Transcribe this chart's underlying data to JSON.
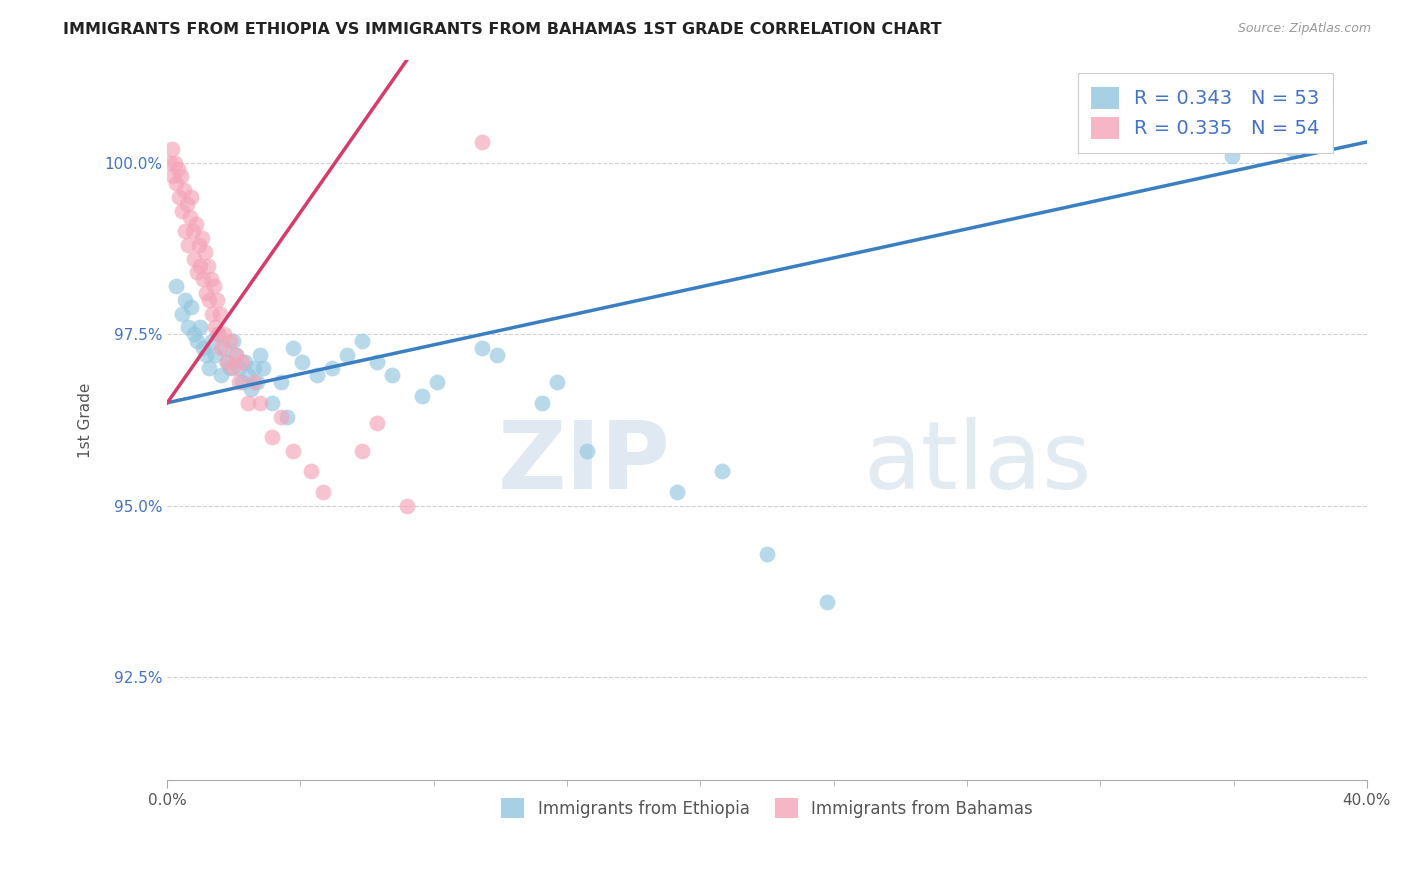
{
  "title": "IMMIGRANTS FROM ETHIOPIA VS IMMIGRANTS FROM BAHAMAS 1ST GRADE CORRELATION CHART",
  "source": "Source: ZipAtlas.com",
  "xlabel_bottom": "Immigrants from Ethiopia",
  "xlabel_bottom2": "Immigrants from Bahamas",
  "ylabel": "1st Grade",
  "xlim": [
    0.0,
    40.0
  ],
  "ylim": [
    91.0,
    101.5
  ],
  "yticks": [
    92.5,
    95.0,
    97.5,
    100.0
  ],
  "ytick_labels": [
    "92.5%",
    "95.0%",
    "97.5%",
    "100.0%"
  ],
  "xtick_labels": [
    "0.0%",
    "",
    "",
    "",
    "",
    "",
    "",
    "",
    "",
    "40.0%"
  ],
  "legend_R1": "R = 0.343",
  "legend_N1": "N = 53",
  "legend_R2": "R = 0.335",
  "legend_N2": "N = 54",
  "blue_color": "#92c5de",
  "pink_color": "#f4a4b8",
  "blue_line_color": "#3a7fc1",
  "pink_line_color": "#d63b6a",
  "watermark_zip": "ZIP",
  "watermark_atlas": "atlas",
  "ethiopia_x": [
    0.3,
    0.5,
    0.6,
    0.7,
    0.8,
    0.9,
    1.0,
    1.1,
    1.2,
    1.3,
    1.4,
    1.5,
    1.6,
    1.7,
    1.8,
    1.9,
    2.0,
    2.1,
    2.2,
    2.3,
    2.4,
    2.5,
    2.6,
    2.7,
    2.8,
    2.9,
    3.0,
    3.1,
    3.2,
    3.5,
    3.8,
    4.0,
    4.2,
    4.5,
    5.0,
    5.5,
    6.0,
    6.5,
    7.0,
    7.5,
    8.5,
    9.0,
    10.5,
    11.0,
    12.5,
    13.0,
    14.0,
    17.0,
    18.5,
    20.0,
    22.0,
    35.5,
    37.5
  ],
  "ethiopia_y": [
    98.2,
    97.8,
    98.0,
    97.6,
    97.9,
    97.5,
    97.4,
    97.6,
    97.3,
    97.2,
    97.0,
    97.4,
    97.2,
    97.5,
    96.9,
    97.3,
    97.1,
    97.0,
    97.4,
    97.2,
    97.0,
    96.8,
    97.1,
    96.9,
    96.7,
    97.0,
    96.8,
    97.2,
    97.0,
    96.5,
    96.8,
    96.3,
    97.3,
    97.1,
    96.9,
    97.0,
    97.2,
    97.4,
    97.1,
    96.9,
    96.6,
    96.8,
    97.3,
    97.2,
    96.5,
    96.8,
    95.8,
    95.2,
    95.5,
    94.3,
    93.6,
    100.1,
    100.2
  ],
  "bahamas_x": [
    0.1,
    0.15,
    0.2,
    0.25,
    0.3,
    0.35,
    0.4,
    0.45,
    0.5,
    0.55,
    0.6,
    0.65,
    0.7,
    0.75,
    0.8,
    0.85,
    0.9,
    0.95,
    1.0,
    1.05,
    1.1,
    1.15,
    1.2,
    1.25,
    1.3,
    1.35,
    1.4,
    1.45,
    1.5,
    1.55,
    1.6,
    1.65,
    1.7,
    1.75,
    1.8,
    1.9,
    2.0,
    2.1,
    2.2,
    2.3,
    2.4,
    2.5,
    2.7,
    2.9,
    3.1,
    3.5,
    3.8,
    4.2,
    4.8,
    5.2,
    6.5,
    7.0,
    8.0,
    10.5
  ],
  "bahamas_y": [
    100.0,
    100.2,
    99.8,
    100.0,
    99.7,
    99.9,
    99.5,
    99.8,
    99.3,
    99.6,
    99.0,
    99.4,
    98.8,
    99.2,
    99.5,
    99.0,
    98.6,
    99.1,
    98.4,
    98.8,
    98.5,
    98.9,
    98.3,
    98.7,
    98.1,
    98.5,
    98.0,
    98.3,
    97.8,
    98.2,
    97.6,
    98.0,
    97.5,
    97.8,
    97.3,
    97.5,
    97.1,
    97.4,
    97.0,
    97.2,
    96.8,
    97.1,
    96.5,
    96.8,
    96.5,
    96.0,
    96.3,
    95.8,
    95.5,
    95.2,
    95.8,
    96.2,
    95.0,
    100.3
  ],
  "blue_line_x": [
    0.0,
    40.0
  ],
  "blue_line_y": [
    96.5,
    100.3
  ],
  "pink_line_x": [
    0.0,
    8.0
  ],
  "pink_line_y": [
    96.5,
    101.5
  ]
}
